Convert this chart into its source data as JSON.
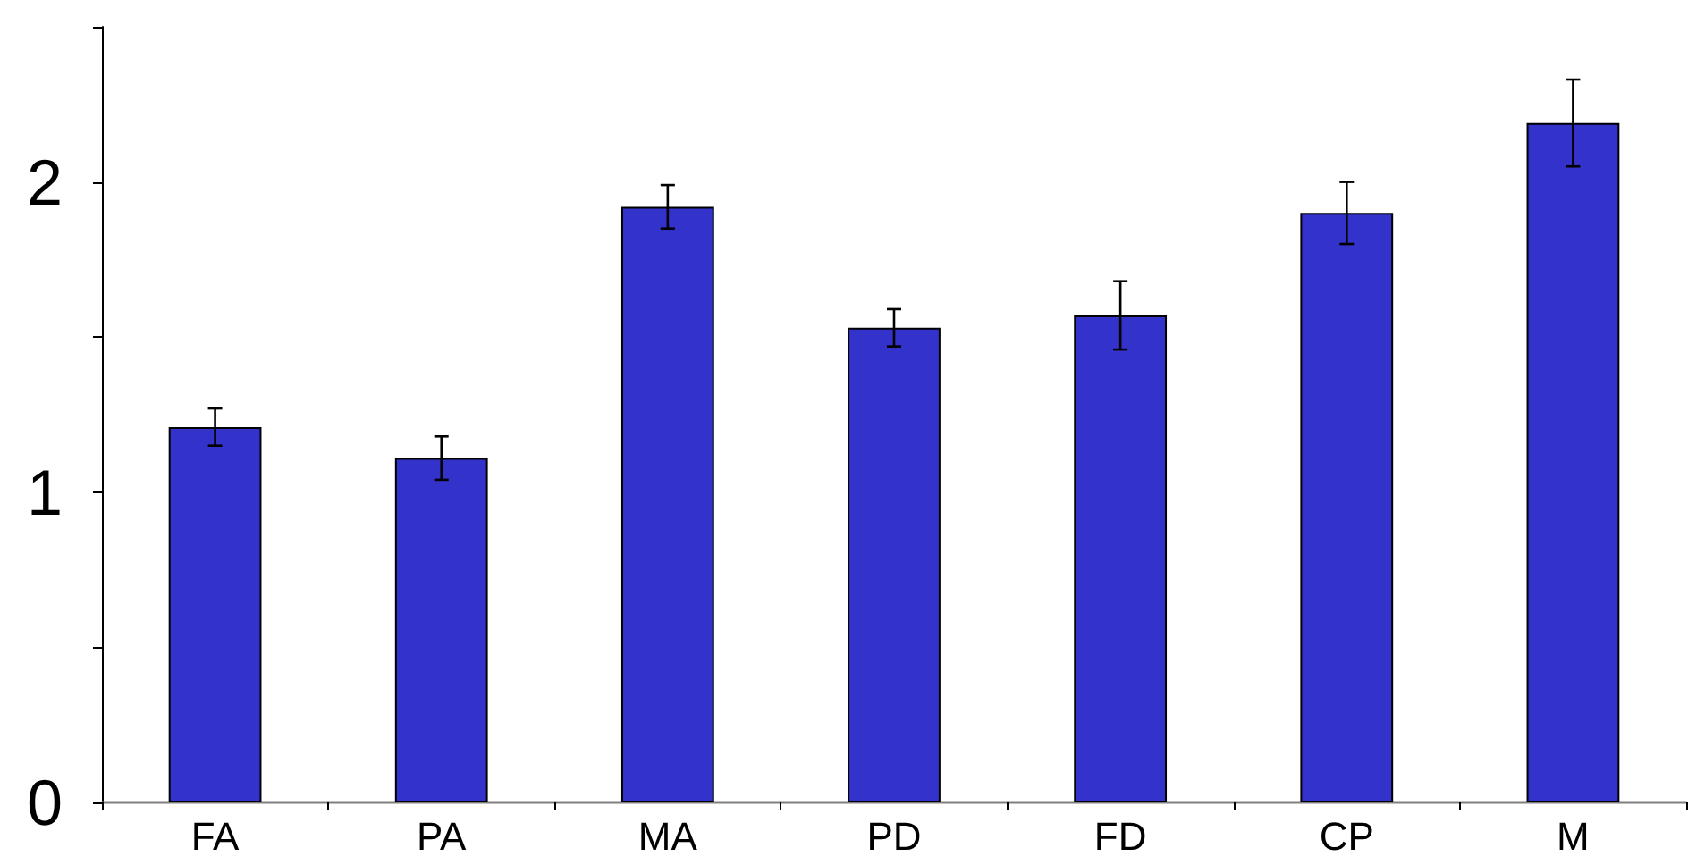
{
  "chart_data": {
    "type": "bar",
    "categories": [
      "FA",
      "PA",
      "MA",
      "PD",
      "FD",
      "CP",
      "M"
    ],
    "values": [
      1.21,
      1.11,
      1.92,
      1.53,
      1.57,
      1.9,
      2.19
    ],
    "errors": [
      0.06,
      0.07,
      0.07,
      0.06,
      0.11,
      0.1,
      0.14
    ],
    "color": "#3333cc",
    "ylim": [
      0,
      2.5
    ],
    "yticks": [
      0,
      {
        "value": 0.5,
        "label": null
      },
      1,
      {
        "value": 1.5,
        "label": null
      },
      2,
      {
        "value": 2.5,
        "label": null
      }
    ]
  }
}
